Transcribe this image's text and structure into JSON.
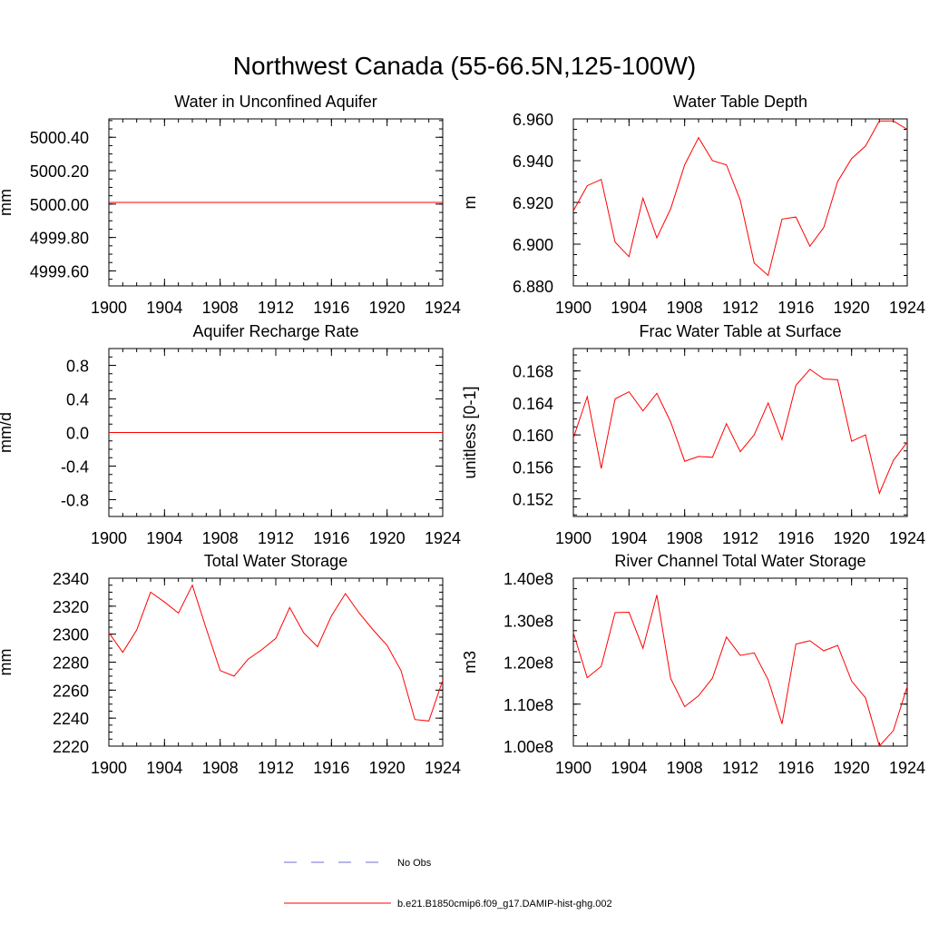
{
  "page_title": "Northwest Canada (55-66.5N,125-100W)",
  "legend": {
    "entries": [
      {
        "label": "No Obs",
        "color": "#6b6bd6",
        "style": "dashed"
      },
      {
        "label": "b.e21.B1850cmip6.f09_g17.DAMIP-hist-ghg.002",
        "color": "#ff0000",
        "style": "solid"
      }
    ]
  },
  "chart_data": [
    {
      "type": "line",
      "title": "Water in Unconfined Aquifer",
      "ylabel": "mm",
      "xlim": [
        1900,
        1924
      ],
      "ylim": [
        4999.51,
        5000.51
      ],
      "xticks": [
        1900,
        1904,
        1908,
        1912,
        1916,
        1920,
        1924
      ],
      "xtick_labels": [
        "1900",
        "1904",
        "1908",
        "1912",
        "1916",
        "1920",
        "1924"
      ],
      "yticks": [
        4999.6,
        4999.8,
        5000.0,
        5000.2,
        5000.4
      ],
      "ytick_labels": [
        "4999.60",
        "4999.80",
        "5000.00",
        "5000.20",
        "5000.40"
      ],
      "yminor": 0.05,
      "series": [
        {
          "color": "#ff0000",
          "x": [
            1900,
            1901,
            1902,
            1903,
            1904,
            1905,
            1906,
            1907,
            1908,
            1909,
            1910,
            1911,
            1912,
            1913,
            1914,
            1915,
            1916,
            1917,
            1918,
            1919,
            1920,
            1921,
            1922,
            1923,
            1924
          ],
          "y": [
            5000.01,
            5000.01,
            5000.01,
            5000.01,
            5000.01,
            5000.01,
            5000.01,
            5000.01,
            5000.01,
            5000.01,
            5000.01,
            5000.01,
            5000.01,
            5000.01,
            5000.01,
            5000.01,
            5000.01,
            5000.01,
            5000.01,
            5000.01,
            5000.01,
            5000.01,
            5000.01,
            5000.01,
            5000.01
          ]
        }
      ]
    },
    {
      "type": "line",
      "title": "Water Table Depth",
      "ylabel": "m",
      "xlim": [
        1900,
        1924
      ],
      "ylim": [
        6.88,
        6.96
      ],
      "xticks": [
        1900,
        1904,
        1908,
        1912,
        1916,
        1920,
        1924
      ],
      "xtick_labels": [
        "1900",
        "1904",
        "1908",
        "1912",
        "1916",
        "1920",
        "1924"
      ],
      "yticks": [
        6.88,
        6.9,
        6.92,
        6.94,
        6.96
      ],
      "ytick_labels": [
        "6.880",
        "6.900",
        "6.920",
        "6.940",
        "6.960"
      ],
      "yminor": 0.005,
      "series": [
        {
          "color": "#ff0000",
          "x": [
            1900,
            1901,
            1902,
            1903,
            1904,
            1905,
            1906,
            1907,
            1908,
            1909,
            1910,
            1911,
            1912,
            1913,
            1914,
            1915,
            1916,
            1917,
            1918,
            1919,
            1920,
            1921,
            1922,
            1923,
            1924
          ],
          "y": [
            6.916,
            6.928,
            6.931,
            6.901,
            6.894,
            6.922,
            6.903,
            6.917,
            6.938,
            6.951,
            6.94,
            6.938,
            6.921,
            6.891,
            6.885,
            6.912,
            6.913,
            6.899,
            6.908,
            6.93,
            6.941,
            6.947,
            6.959,
            6.959,
            6.955
          ]
        }
      ]
    },
    {
      "type": "line",
      "title": "Aquifer Recharge Rate",
      "ylabel": "mm/d",
      "xlim": [
        1900,
        1924
      ],
      "ylim": [
        -1.0,
        1.0
      ],
      "xticks": [
        1900,
        1904,
        1908,
        1912,
        1916,
        1920,
        1924
      ],
      "xtick_labels": [
        "1900",
        "1904",
        "1908",
        "1912",
        "1916",
        "1920",
        "1924"
      ],
      "yticks": [
        -0.8,
        -0.4,
        0.0,
        0.4,
        0.8
      ],
      "ytick_labels": [
        "-0.8",
        "-0.4",
        "0.0",
        "0.4",
        "0.8"
      ],
      "yminor": 0.1,
      "series": [
        {
          "color": "#ff0000",
          "x": [
            1900,
            1901,
            1902,
            1903,
            1904,
            1905,
            1906,
            1907,
            1908,
            1909,
            1910,
            1911,
            1912,
            1913,
            1914,
            1915,
            1916,
            1917,
            1918,
            1919,
            1920,
            1921,
            1922,
            1923,
            1924
          ],
          "y": [
            0,
            0,
            0,
            0,
            0,
            0,
            0,
            0,
            0,
            0,
            0,
            0,
            0,
            0,
            0,
            0,
            0,
            0,
            0,
            0,
            0,
            0,
            0,
            0,
            0
          ]
        }
      ]
    },
    {
      "type": "line",
      "title": "Frac Water Table at Surface",
      "ylabel": "unitless [0-1]",
      "xlim": [
        1900,
        1924
      ],
      "ylim": [
        0.1498,
        0.1708
      ],
      "xticks": [
        1900,
        1904,
        1908,
        1912,
        1916,
        1920,
        1924
      ],
      "xtick_labels": [
        "1900",
        "1904",
        "1908",
        "1912",
        "1916",
        "1920",
        "1924"
      ],
      "yticks": [
        0.152,
        0.156,
        0.16,
        0.164,
        0.168
      ],
      "ytick_labels": [
        "0.152",
        "0.156",
        "0.160",
        "0.164",
        "0.168"
      ],
      "yminor": 0.001,
      "series": [
        {
          "color": "#ff0000",
          "x": [
            1900,
            1901,
            1902,
            1903,
            1904,
            1905,
            1906,
            1907,
            1908,
            1909,
            1910,
            1911,
            1912,
            1913,
            1914,
            1915,
            1916,
            1917,
            1918,
            1919,
            1920,
            1921,
            1922,
            1923,
            1924
          ],
          "y": [
            0.1596,
            0.1648,
            0.1558,
            0.1645,
            0.1654,
            0.163,
            0.1652,
            0.1616,
            0.1567,
            0.1573,
            0.1572,
            0.1614,
            0.1579,
            0.16,
            0.164,
            0.1594,
            0.1662,
            0.1682,
            0.167,
            0.1669,
            0.1592,
            0.16,
            0.1527,
            0.1568,
            0.1591
          ]
        }
      ]
    },
    {
      "type": "line",
      "title": "Total Water Storage",
      "ylabel": "mm",
      "xlim": [
        1900,
        1924
      ],
      "ylim": [
        2220,
        2340
      ],
      "xticks": [
        1900,
        1904,
        1908,
        1912,
        1916,
        1920,
        1924
      ],
      "xtick_labels": [
        "1900",
        "1904",
        "1908",
        "1912",
        "1916",
        "1920",
        "1924"
      ],
      "yticks": [
        2220,
        2240,
        2260,
        2280,
        2300,
        2320,
        2340
      ],
      "ytick_labels": [
        "2220",
        "2240",
        "2260",
        "2280",
        "2300",
        "2320",
        "2340"
      ],
      "yminor": 5,
      "series": [
        {
          "color": "#ff0000",
          "x": [
            1900,
            1901,
            1902,
            1903,
            1904,
            1905,
            1906,
            1907,
            1908,
            1909,
            1910,
            1911,
            1912,
            1913,
            1914,
            1915,
            1916,
            1917,
            1918,
            1919,
            1920,
            1921,
            1922,
            1923,
            1924
          ],
          "y": [
            2301,
            2287,
            2303,
            2330,
            2323,
            2315,
            2335,
            2304,
            2274,
            2270,
            2282,
            2289,
            2297,
            2319,
            2301,
            2291,
            2313,
            2329,
            2315,
            2303,
            2292,
            2274,
            2239,
            2238,
            2267
          ]
        }
      ]
    },
    {
      "type": "line",
      "title": "River Channel Total Water Storage",
      "ylabel": "m3",
      "xlim": [
        1900,
        1924
      ],
      "ylim": [
        100000000,
        140000000
      ],
      "xticks": [
        1900,
        1904,
        1908,
        1912,
        1916,
        1920,
        1924
      ],
      "xtick_labels": [
        "1900",
        "1904",
        "1908",
        "1912",
        "1916",
        "1920",
        "1924"
      ],
      "yticks": [
        100000000,
        110000000,
        120000000,
        130000000,
        140000000
      ],
      "ytick_labels": [
        "1.00e8",
        "1.10e8",
        "1.20e8",
        "1.30e8",
        "1.40e8"
      ],
      "yminor": 2500000,
      "series": [
        {
          "color": "#ff0000",
          "x": [
            1900,
            1901,
            1902,
            1903,
            1904,
            1905,
            1906,
            1907,
            1908,
            1909,
            1910,
            1911,
            1912,
            1913,
            1914,
            1915,
            1916,
            1917,
            1918,
            1919,
            1920,
            1921,
            1922,
            1923,
            1924
          ],
          "y": [
            127000000,
            116300000,
            119000000,
            131800000,
            131900000,
            123300000,
            136000000,
            116100000,
            109400000,
            112000000,
            116200000,
            126000000,
            121600000,
            122200000,
            115800000,
            105300000,
            124300000,
            125100000,
            122700000,
            124000000,
            115500000,
            111500000,
            100000000,
            103700000,
            114200000
          ]
        }
      ]
    }
  ]
}
